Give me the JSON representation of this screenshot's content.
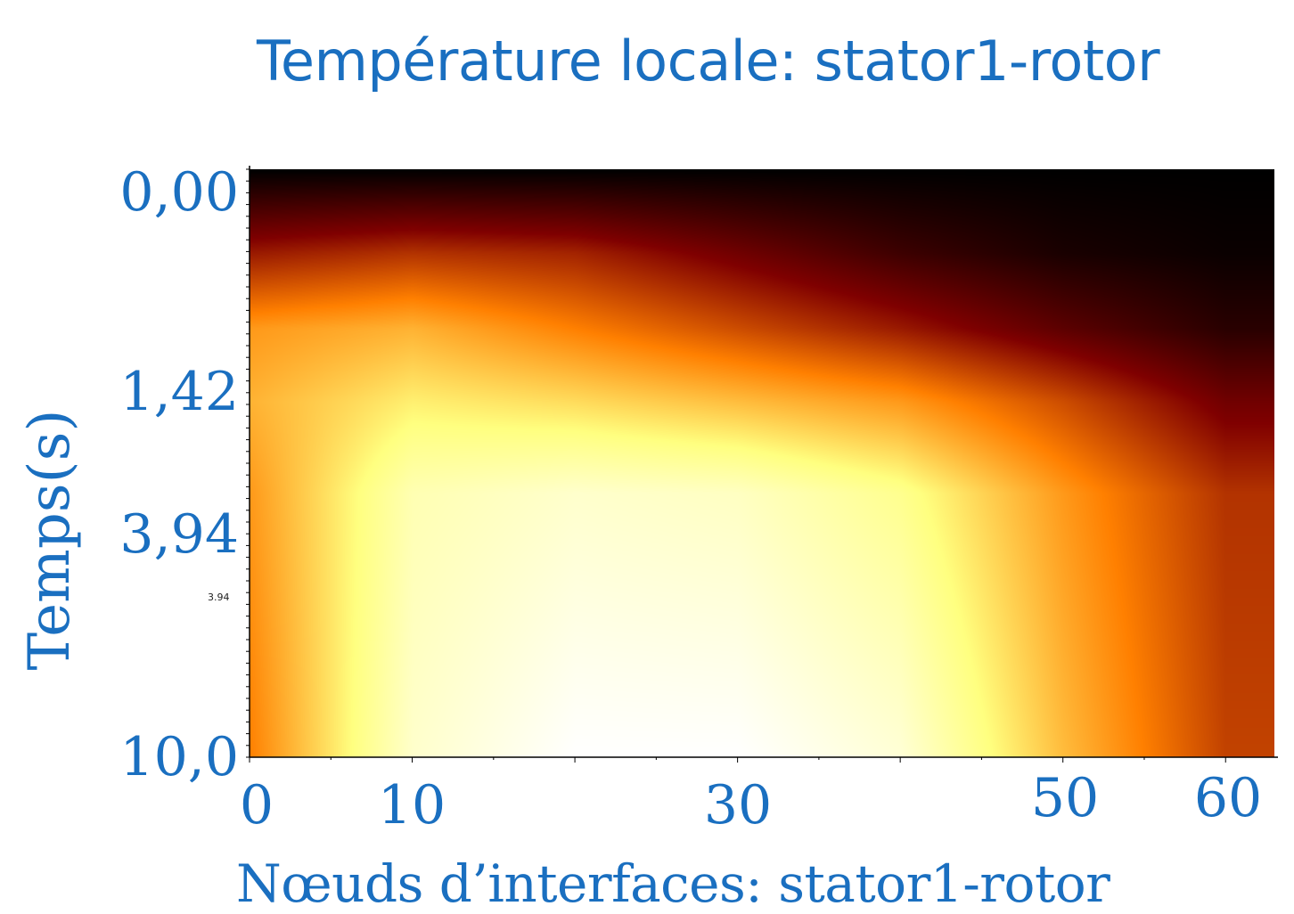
{
  "chart_data": {
    "type": "heatmap",
    "title": "Température locale: stator1-rotor",
    "xlabel": "Nœuds d’interfaces:  stator1-rotor",
    "ylabel": "Temps(s)",
    "x_ticks": [
      "0",
      "10",
      "30",
      "50",
      "60"
    ],
    "x_tick_values": [
      0,
      10,
      30,
      50,
      60
    ],
    "y_ticks": [
      "0,00",
      "1,42",
      "3,94",
      "10,0"
    ],
    "y_tick_values": [
      0.0,
      1.42,
      3.94,
      10.0
    ],
    "inner_y_tick_label": "3.94",
    "xlim": [
      0,
      63
    ],
    "ylim": [
      0,
      10
    ],
    "y_inverted": true,
    "colormap": "afmhot",
    "x": [
      0,
      10,
      20,
      30,
      40,
      50,
      60
    ],
    "y": [
      0.0,
      1.42,
      2.7,
      3.94,
      5.5,
      10.0
    ],
    "z": [
      [
        0.0,
        0.0,
        0.0,
        0.0,
        0.0,
        0.0,
        0.0
      ],
      [
        0.3,
        0.35,
        0.32,
        0.22,
        0.12,
        0.05,
        0.02
      ],
      [
        0.55,
        0.6,
        0.5,
        0.4,
        0.3,
        0.18,
        0.08
      ],
      [
        0.6,
        0.72,
        0.68,
        0.62,
        0.55,
        0.4,
        0.22
      ],
      [
        0.55,
        0.85,
        0.9,
        0.88,
        0.78,
        0.55,
        0.35
      ],
      [
        0.5,
        0.9,
        1.0,
        1.0,
        0.92,
        0.62,
        0.38
      ]
    ]
  },
  "colors": {
    "text_accent": "#1a6fc0"
  }
}
